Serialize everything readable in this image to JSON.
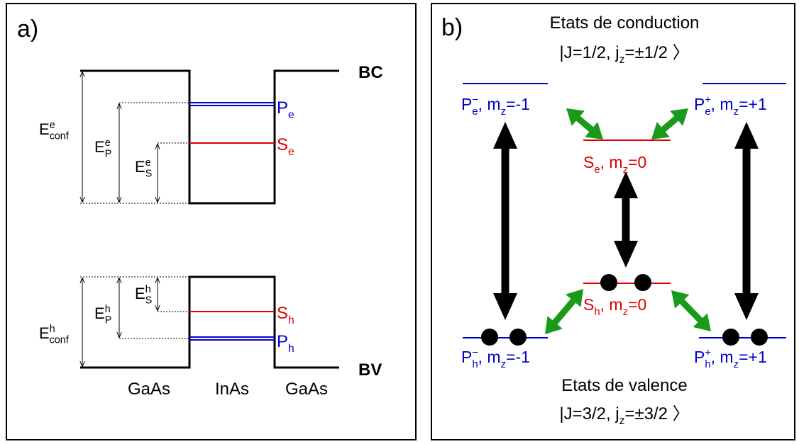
{
  "panel_a": {
    "label": "a)",
    "band_labels": {
      "conduction": "BC",
      "valence": "BV"
    },
    "materials": [
      "GaAs",
      "InAs",
      "GaAs"
    ],
    "labels": {
      "Pe": [
        "P",
        {
          "sub": "e"
        }
      ],
      "Se": [
        "S",
        {
          "sub": "e"
        }
      ],
      "Sh": [
        "S",
        {
          "sub": "h"
        }
      ],
      "Ph": [
        "P",
        {
          "sub": "h"
        }
      ],
      "Econf_e": [
        "E",
        {
          "sup": "e",
          "sub": "conf"
        }
      ],
      "EP_e": [
        "E",
        {
          "sup": "e",
          "sub": "P"
        }
      ],
      "ES_e": [
        "E",
        {
          "sup": "e",
          "sub": "S"
        }
      ],
      "ES_h": [
        "E",
        {
          "sup": "h",
          "sub": "S"
        }
      ],
      "EP_h": [
        "E",
        {
          "sup": "h",
          "sub": "P"
        }
      ],
      "Econf_h": [
        "E",
        {
          "sup": "h",
          "sub": "conf"
        }
      ]
    }
  },
  "panel_b": {
    "label": "b)",
    "conduction_title": "Etats de conduction",
    "conduction_state": [
      "|J=1/2, j",
      {
        "sub": "z"
      },
      "=±1/2 〉"
    ],
    "valence_title": "Etats de valence",
    "valence_state": [
      "|J=3/2, j",
      {
        "sub": "z"
      },
      "=±3/2 〉"
    ],
    "levels": {
      "Pe_minus": [
        "P",
        {
          "sup": "−",
          "sub": "e"
        },
        ", m",
        {
          "sub": "z"
        },
        "=-1"
      ],
      "Pe_plus": [
        "P",
        {
          "sup": "+",
          "sub": "e"
        },
        ", m",
        {
          "sub": "z"
        },
        "=+1"
      ],
      "Se": [
        "S",
        {
          "sub": "e"
        },
        ", m",
        {
          "sub": "z"
        },
        "=0"
      ],
      "Sh": [
        "S",
        {
          "sub": "h"
        },
        ", m",
        {
          "sub": "z"
        },
        "=0"
      ],
      "Ph_minus": [
        "P",
        {
          "sup": "−",
          "sub": "h"
        },
        ", m",
        {
          "sub": "z"
        },
        "=-1"
      ],
      "Ph_plus": [
        "P",
        {
          "sup": "+",
          "sub": "h"
        },
        ", m",
        {
          "sub": "z"
        },
        "=+1"
      ]
    }
  }
}
